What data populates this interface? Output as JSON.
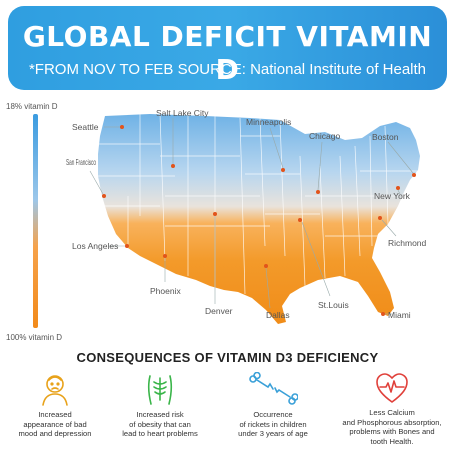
{
  "header": {
    "title": "GLOBAL DEFICIT VITAMIN D",
    "subtitle": "*FROM NOV TO FEB SOURCE: National Institute of Health"
  },
  "legend": {
    "top_label": "18% vitamin D",
    "bottom_label": "100% vitamin D",
    "top_color": "#3a9be0",
    "bottom_color": "#f28a1a"
  },
  "map": {
    "cities": [
      {
        "name": "Seattle"
      },
      {
        "name": "Salt Lake City"
      },
      {
        "name": "Minneapolis"
      },
      {
        "name": "Chicago"
      },
      {
        "name": "Boston"
      },
      {
        "name": "San Francisco"
      },
      {
        "name": "New York"
      },
      {
        "name": "Los Angeles"
      },
      {
        "name": "Richmond"
      },
      {
        "name": "Phoenix"
      },
      {
        "name": "Denver"
      },
      {
        "name": "Dallas"
      },
      {
        "name": "St.Louis"
      },
      {
        "name": "Miami"
      }
    ]
  },
  "consequences": {
    "title": "CONSEQUENCES OF VITAMIN D3 DEFICIENCY",
    "items": [
      {
        "icon": "sad-person-icon",
        "color": "#e8a21a",
        "text_lines": [
          "Increased",
          "appearance of bad",
          "mood and depression"
        ]
      },
      {
        "icon": "body-obesity-icon",
        "color": "#3bb54a",
        "text_lines": [
          "Increased risk",
          "of obesity that can",
          "lead to heart problems"
        ]
      },
      {
        "icon": "broken-bone-icon",
        "color": "#3aa0d8",
        "text_lines": [
          "Occurrence",
          "of rickets in children",
          "under 3 years of age"
        ]
      },
      {
        "icon": "heart-pulse-icon",
        "color": "#e0403a",
        "text_lines": [
          "Less Calcium",
          "and Phosphorous absorption,",
          "problems with Bones and",
          "tooth Health."
        ]
      }
    ]
  }
}
